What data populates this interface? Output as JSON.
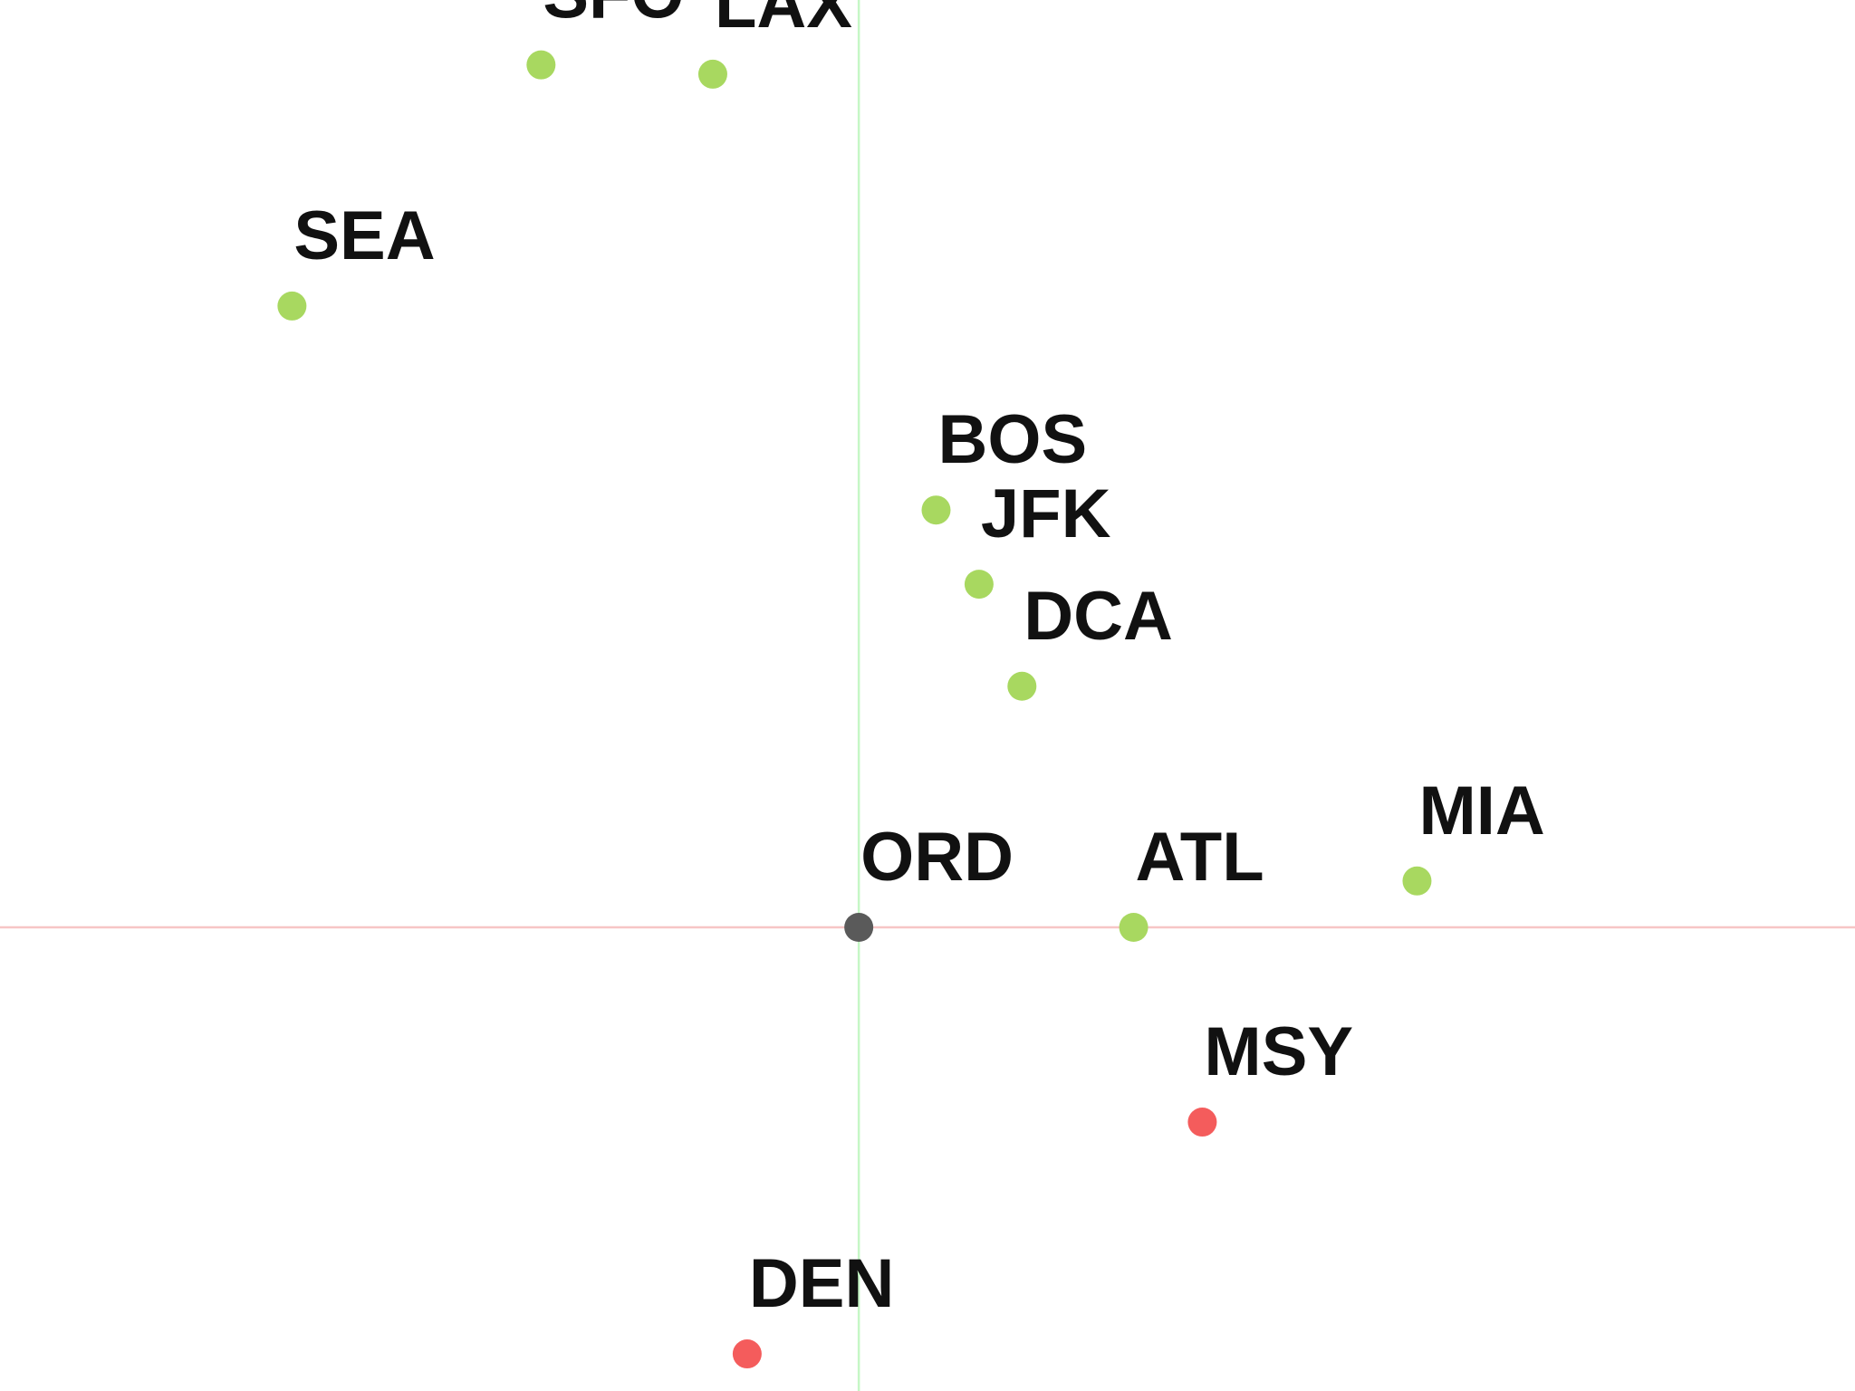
{
  "chart_data": {
    "type": "scatter",
    "title": "",
    "xlabel": "",
    "ylabel": "",
    "xlim": [
      -1.0,
      1.16
    ],
    "ylim": [
      -0.5,
      1.0
    ],
    "grid": false,
    "legend": "none",
    "reference_lines": {
      "horizontal_at_y": 0,
      "vertical_at_x": 0,
      "horizontal_color": "#f7c6c6",
      "vertical_color": "#c6f7c6"
    },
    "colors": {
      "green": "#a8d860",
      "red": "#f45c5c",
      "gray": "#5a5a5a"
    },
    "points": [
      {
        "label": "SFO",
        "x": -0.37,
        "y": 0.93,
        "color": "green"
      },
      {
        "label": "LAX",
        "x": -0.17,
        "y": 0.92,
        "color": "green"
      },
      {
        "label": "SEA",
        "x": -0.66,
        "y": 0.67,
        "color": "green"
      },
      {
        "label": "BOS",
        "x": 0.09,
        "y": 0.45,
        "color": "green"
      },
      {
        "label": "JFK",
        "x": 0.14,
        "y": 0.37,
        "color": "green"
      },
      {
        "label": "DCA",
        "x": 0.19,
        "y": 0.26,
        "color": "green"
      },
      {
        "label": "ORD",
        "x": 0.0,
        "y": 0.0,
        "color": "gray"
      },
      {
        "label": "ATL",
        "x": 0.32,
        "y": 0.0,
        "color": "green"
      },
      {
        "label": "MIA",
        "x": 0.65,
        "y": 0.05,
        "color": "green"
      },
      {
        "label": "MSY",
        "x": 0.4,
        "y": -0.21,
        "color": "red"
      },
      {
        "label": "DEN",
        "x": -0.13,
        "y": -0.46,
        "color": "red"
      }
    ]
  }
}
